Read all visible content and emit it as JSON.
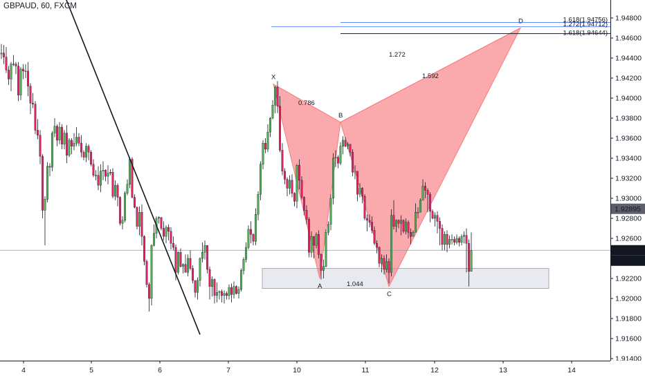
{
  "header": {
    "title": "GBPAUD, 60, FXCM"
  },
  "price_tags": {
    "upper": {
      "text": "1.92895",
      "bg": "#5d606b"
    },
    "current": {
      "text": "1.92481",
      "bg": "#131722"
    },
    "countdown": {
      "text": "49:37",
      "bg": "#131722"
    }
  },
  "colors": {
    "bull": "#4caf50",
    "bear": "#e91e63",
    "pattern": "#f77c80",
    "box": "#e8eaf0"
  },
  "chart_data": {
    "type": "candlestick",
    "title": "GBPAUD, 60, FXCM",
    "xlabel": "",
    "ylabel": "",
    "ylim": [
      1.913,
      1.95
    ],
    "y_ticks": [
      "1.94800",
      "1.94600",
      "1.94400",
      "1.94200",
      "1.94000",
      "1.93800",
      "1.93600",
      "1.93400",
      "1.93200",
      "1.93000",
      "1.92800",
      "1.92600",
      "1.92400",
      "1.92200",
      "1.92000",
      "1.91800",
      "1.91600",
      "1.91400"
    ],
    "x_ticks": [
      "4",
      "5",
      "6",
      "7",
      "10",
      "11",
      "12",
      "13",
      "14"
    ],
    "current_price": 1.92481,
    "marked_price": 1.92895,
    "pattern_points": [
      {
        "label": "X",
        "price": 1.9414
      },
      {
        "label": "A",
        "price": 1.922
      },
      {
        "label": "B",
        "price": 1.9376
      },
      {
        "label": "C",
        "price": 1.9212
      },
      {
        "label": "D",
        "price": 1.947
      }
    ],
    "ratios": [
      "0.786",
      "1.044",
      "1.272",
      "1.592"
    ],
    "fib_levels": [
      {
        "text": "1.618(1.94756)",
        "price": 1.94756,
        "color": "#2962ff"
      },
      {
        "text": "1.272(1.94712)",
        "price": 1.94712,
        "color": "#2962ff"
      },
      {
        "text": "1.618(1.94644)",
        "price": 1.94644,
        "color": "#131722"
      }
    ],
    "zone": {
      "top": 1.923,
      "bottom": 1.921
    },
    "trendline": [
      1.951,
      1.9164
    ],
    "candles": {
      "open": [
        1.9444,
        1.9445,
        1.9441,
        1.9428,
        1.9419,
        1.9434,
        1.9434,
        1.9432,
        1.9403,
        1.9429,
        1.9427,
        1.9427,
        1.9412,
        1.9395,
        1.9394,
        1.9368,
        1.9363,
        1.9342,
        1.9288,
        1.9299,
        1.9332,
        1.9331,
        1.9365,
        1.9372,
        1.9358,
        1.9371,
        1.9354,
        1.9365,
        1.9343,
        1.9358,
        1.9352,
        1.9355,
        1.9361,
        1.9355,
        1.9346,
        1.9341,
        1.9352,
        1.9346,
        1.9334,
        1.9323,
        1.9323,
        1.9313,
        1.9327,
        1.9328,
        1.9322,
        1.9325,
        1.9326,
        1.9302,
        1.9313,
        1.9301,
        1.9275,
        1.9278,
        1.9305,
        1.9314,
        1.9339,
        1.9301,
        1.9291,
        1.9272,
        1.9286,
        1.9262,
        1.9237,
        1.9214,
        1.92,
        1.9253,
        1.9265,
        1.928,
        1.9281,
        1.927,
        1.9262,
        1.9271,
        1.9267,
        1.9255,
        1.9251,
        1.9226,
        1.9246,
        1.9232,
        1.9234,
        1.9226,
        1.924,
        1.923,
        1.9218,
        1.9206,
        1.9218,
        1.924,
        1.9246,
        1.9253,
        1.9229,
        1.9212,
        1.9219,
        1.9203,
        1.9206,
        1.9207,
        1.9203,
        1.9205,
        1.9203,
        1.9211,
        1.9204,
        1.9212,
        1.9205,
        1.9209,
        1.9228,
        1.9239,
        1.9251,
        1.9269,
        1.9264,
        1.9257,
        1.9284,
        1.9304,
        1.9334,
        1.9355,
        1.9349,
        1.9366,
        1.938,
        1.9393,
        1.9411,
        1.9392,
        1.9348,
        1.9327,
        1.9319,
        1.931,
        1.9318,
        1.9305,
        1.9297,
        1.9333,
        1.9318,
        1.9301,
        1.9288,
        1.9279,
        1.9246,
        1.9262,
        1.9253,
        1.9264,
        1.9244,
        1.9228,
        1.9232,
        1.9266,
        1.9274,
        1.93,
        1.934,
        1.9341,
        1.9335,
        1.9352,
        1.9358,
        1.9352,
        1.9354,
        1.9346,
        1.9326,
        1.9327,
        1.9304,
        1.931,
        1.9302,
        1.928,
        1.9278,
        1.9276,
        1.9268,
        1.9255,
        1.9251,
        1.9235,
        1.924,
        1.9229,
        1.9237,
        1.9226,
        1.9283,
        1.9272,
        1.9278,
        1.9275,
        1.9278,
        1.9267,
        1.9276,
        1.9266,
        1.9262,
        1.9266,
        1.9286,
        1.9286,
        1.9298,
        1.9312,
        1.9308,
        1.9304,
        1.9287,
        1.928,
        1.9283,
        1.9277,
        1.927,
        1.9254,
        1.9264,
        1.9254,
        1.9259,
        1.9259,
        1.9256,
        1.926,
        1.9256,
        1.9262,
        1.9263,
        1.9255,
        1.9227
      ],
      "close": [
        1.9445,
        1.9441,
        1.9428,
        1.9419,
        1.9434,
        1.9434,
        1.9432,
        1.9403,
        1.9429,
        1.9427,
        1.9427,
        1.9412,
        1.9395,
        1.9394,
        1.9368,
        1.9363,
        1.9342,
        1.9288,
        1.9299,
        1.9332,
        1.9331,
        1.9365,
        1.9372,
        1.9358,
        1.9371,
        1.9354,
        1.9365,
        1.9343,
        1.9358,
        1.9352,
        1.9355,
        1.9361,
        1.9355,
        1.9346,
        1.9341,
        1.9352,
        1.9346,
        1.9334,
        1.9323,
        1.9323,
        1.9313,
        1.9327,
        1.9328,
        1.9322,
        1.9325,
        1.9326,
        1.9302,
        1.9313,
        1.9301,
        1.9275,
        1.9278,
        1.9305,
        1.9314,
        1.9339,
        1.9301,
        1.9291,
        1.9272,
        1.9286,
        1.9262,
        1.9237,
        1.9214,
        1.92,
        1.9253,
        1.9265,
        1.928,
        1.9281,
        1.927,
        1.9262,
        1.9271,
        1.9267,
        1.9255,
        1.9251,
        1.9226,
        1.9246,
        1.9232,
        1.9234,
        1.9226,
        1.924,
        1.923,
        1.9218,
        1.9206,
        1.9218,
        1.924,
        1.9246,
        1.9253,
        1.9229,
        1.9212,
        1.9219,
        1.9203,
        1.9206,
        1.9207,
        1.9203,
        1.9205,
        1.9203,
        1.9211,
        1.9204,
        1.9212,
        1.9205,
        1.9209,
        1.9228,
        1.9239,
        1.9251,
        1.9269,
        1.9264,
        1.9257,
        1.9284,
        1.9304,
        1.9334,
        1.9355,
        1.9349,
        1.9366,
        1.938,
        1.9393,
        1.9411,
        1.9392,
        1.9348,
        1.9327,
        1.9319,
        1.931,
        1.9318,
        1.9305,
        1.9297,
        1.9333,
        1.9318,
        1.9301,
        1.9288,
        1.9279,
        1.9246,
        1.9262,
        1.9253,
        1.9264,
        1.9244,
        1.9228,
        1.9232,
        1.9266,
        1.9274,
        1.93,
        1.934,
        1.9341,
        1.9335,
        1.9352,
        1.9358,
        1.9352,
        1.9354,
        1.9346,
        1.9326,
        1.9327,
        1.9304,
        1.931,
        1.9302,
        1.928,
        1.9278,
        1.9276,
        1.9268,
        1.9255,
        1.9251,
        1.9235,
        1.924,
        1.9229,
        1.9237,
        1.9226,
        1.9283,
        1.9272,
        1.9278,
        1.9275,
        1.9278,
        1.9267,
        1.9276,
        1.9266,
        1.9262,
        1.9266,
        1.9286,
        1.9286,
        1.9298,
        1.9312,
        1.9308,
        1.9304,
        1.9287,
        1.928,
        1.9283,
        1.9277,
        1.927,
        1.9254,
        1.9264,
        1.9254,
        1.9259,
        1.9259,
        1.9256,
        1.926,
        1.9256,
        1.9262,
        1.9263,
        1.9255,
        1.9227,
        1.9248
      ],
      "high": [
        1.9454,
        1.9453,
        1.9451,
        1.9432,
        1.9436,
        1.9443,
        1.9436,
        1.9436,
        1.9431,
        1.9434,
        1.9434,
        1.9436,
        1.9415,
        1.9405,
        1.9397,
        1.9379,
        1.9368,
        1.9344,
        1.9302,
        1.9336,
        1.9335,
        1.9367,
        1.938,
        1.9374,
        1.9376,
        1.9374,
        1.9368,
        1.9373,
        1.936,
        1.936,
        1.9365,
        1.9371,
        1.9365,
        1.9363,
        1.9348,
        1.9355,
        1.9354,
        1.9348,
        1.9339,
        1.9328,
        1.9332,
        1.9334,
        1.9337,
        1.9329,
        1.9333,
        1.9329,
        1.933,
        1.9318,
        1.9315,
        1.9302,
        1.9282,
        1.9307,
        1.9319,
        1.9341,
        1.9341,
        1.9304,
        1.9292,
        1.9292,
        1.9294,
        1.9263,
        1.9239,
        1.9216,
        1.9254,
        1.9274,
        1.9282,
        1.9282,
        1.9281,
        1.9277,
        1.9273,
        1.9274,
        1.9271,
        1.9262,
        1.9254,
        1.9247,
        1.925,
        1.9235,
        1.9244,
        1.9244,
        1.9248,
        1.9233,
        1.9218,
        1.9221,
        1.9241,
        1.9256,
        1.9258,
        1.9253,
        1.9232,
        1.9222,
        1.922,
        1.9216,
        1.9208,
        1.9209,
        1.9208,
        1.9207,
        1.9214,
        1.9215,
        1.9217,
        1.9213,
        1.9212,
        1.923,
        1.9241,
        1.9256,
        1.9273,
        1.9277,
        1.9265,
        1.929,
        1.9307,
        1.9337,
        1.9358,
        1.936,
        1.9374,
        1.9381,
        1.9398,
        1.9412,
        1.9417,
        1.9402,
        1.9355,
        1.933,
        1.9321,
        1.9323,
        1.9324,
        1.9306,
        1.9334,
        1.9339,
        1.9322,
        1.9302,
        1.9293,
        1.9281,
        1.9267,
        1.9262,
        1.9266,
        1.9268,
        1.9245,
        1.9239,
        1.9269,
        1.9277,
        1.9304,
        1.9345,
        1.9348,
        1.9343,
        1.9356,
        1.9362,
        1.9361,
        1.9356,
        1.9354,
        1.9349,
        1.9333,
        1.9327,
        1.9315,
        1.9311,
        1.9304,
        1.9284,
        1.9284,
        1.9282,
        1.9272,
        1.9258,
        1.9252,
        1.9244,
        1.9243,
        1.9244,
        1.924,
        1.9289,
        1.9298,
        1.9279,
        1.9279,
        1.9283,
        1.9279,
        1.928,
        1.9278,
        1.927,
        1.9268,
        1.9295,
        1.9291,
        1.93,
        1.9319,
        1.9316,
        1.931,
        1.9306,
        1.9289,
        1.9286,
        1.9287,
        1.9281,
        1.9274,
        1.9267,
        1.9268,
        1.9263,
        1.9264,
        1.9262,
        1.9264,
        1.9262,
        1.9264,
        1.9267,
        1.927,
        1.9259,
        1.9266
      ],
      "low": [
        1.9439,
        1.9434,
        1.9425,
        1.9413,
        1.9407,
        1.9432,
        1.9424,
        1.9397,
        1.9398,
        1.9419,
        1.942,
        1.9402,
        1.9384,
        1.939,
        1.9364,
        1.9359,
        1.9334,
        1.928,
        1.9253,
        1.9296,
        1.9322,
        1.9327,
        1.9361,
        1.9352,
        1.9354,
        1.9349,
        1.9349,
        1.9335,
        1.9341,
        1.9344,
        1.9348,
        1.9352,
        1.9352,
        1.9341,
        1.9338,
        1.9336,
        1.9338,
        1.9332,
        1.9321,
        1.9318,
        1.9308,
        1.9306,
        1.9318,
        1.9317,
        1.9314,
        1.9323,
        1.93,
        1.9298,
        1.9292,
        1.9273,
        1.9269,
        1.9276,
        1.9303,
        1.931,
        1.93,
        1.929,
        1.9269,
        1.9263,
        1.9253,
        1.9233,
        1.9211,
        1.9187,
        1.9193,
        1.9252,
        1.926,
        1.9275,
        1.9268,
        1.9258,
        1.9255,
        1.9258,
        1.9249,
        1.9248,
        1.9218,
        1.9224,
        1.9231,
        1.9225,
        1.923,
        1.9222,
        1.9228,
        1.9215,
        1.9201,
        1.9199,
        1.9212,
        1.9236,
        1.9239,
        1.9225,
        1.9199,
        1.9202,
        1.9195,
        1.9196,
        1.9199,
        1.9196,
        1.9195,
        1.9199,
        1.9199,
        1.9196,
        1.92,
        1.9204,
        1.92,
        1.9207,
        1.9224,
        1.9236,
        1.9249,
        1.9255,
        1.9253,
        1.9253,
        1.9278,
        1.9298,
        1.9329,
        1.9345,
        1.9346,
        1.9361,
        1.9379,
        1.9385,
        1.9385,
        1.9346,
        1.9323,
        1.9314,
        1.9302,
        1.9304,
        1.9301,
        1.9292,
        1.929,
        1.9309,
        1.9299,
        1.9283,
        1.9274,
        1.9241,
        1.9241,
        1.924,
        1.925,
        1.924,
        1.9219,
        1.922,
        1.9231,
        1.9263,
        1.9268,
        1.9294,
        1.9331,
        1.933,
        1.9333,
        1.9344,
        1.9351,
        1.9349,
        1.9342,
        1.9322,
        1.9319,
        1.9297,
        1.9301,
        1.9295,
        1.9278,
        1.9267,
        1.9271,
        1.9265,
        1.9253,
        1.9245,
        1.9231,
        1.9226,
        1.9224,
        1.9226,
        1.9215,
        1.9222,
        1.9269,
        1.9266,
        1.927,
        1.9263,
        1.9265,
        1.9264,
        1.926,
        1.9254,
        1.9262,
        1.928,
        1.928,
        1.9298,
        1.9304,
        1.93,
        1.9286,
        1.9276,
        1.9279,
        1.9272,
        1.9265,
        1.9253,
        1.9248,
        1.9248,
        1.9246,
        1.925,
        1.9254,
        1.9253,
        1.9254,
        1.9252,
        1.9253,
        1.9255,
        1.9226,
        1.9212,
        1.9245
      ]
    }
  }
}
